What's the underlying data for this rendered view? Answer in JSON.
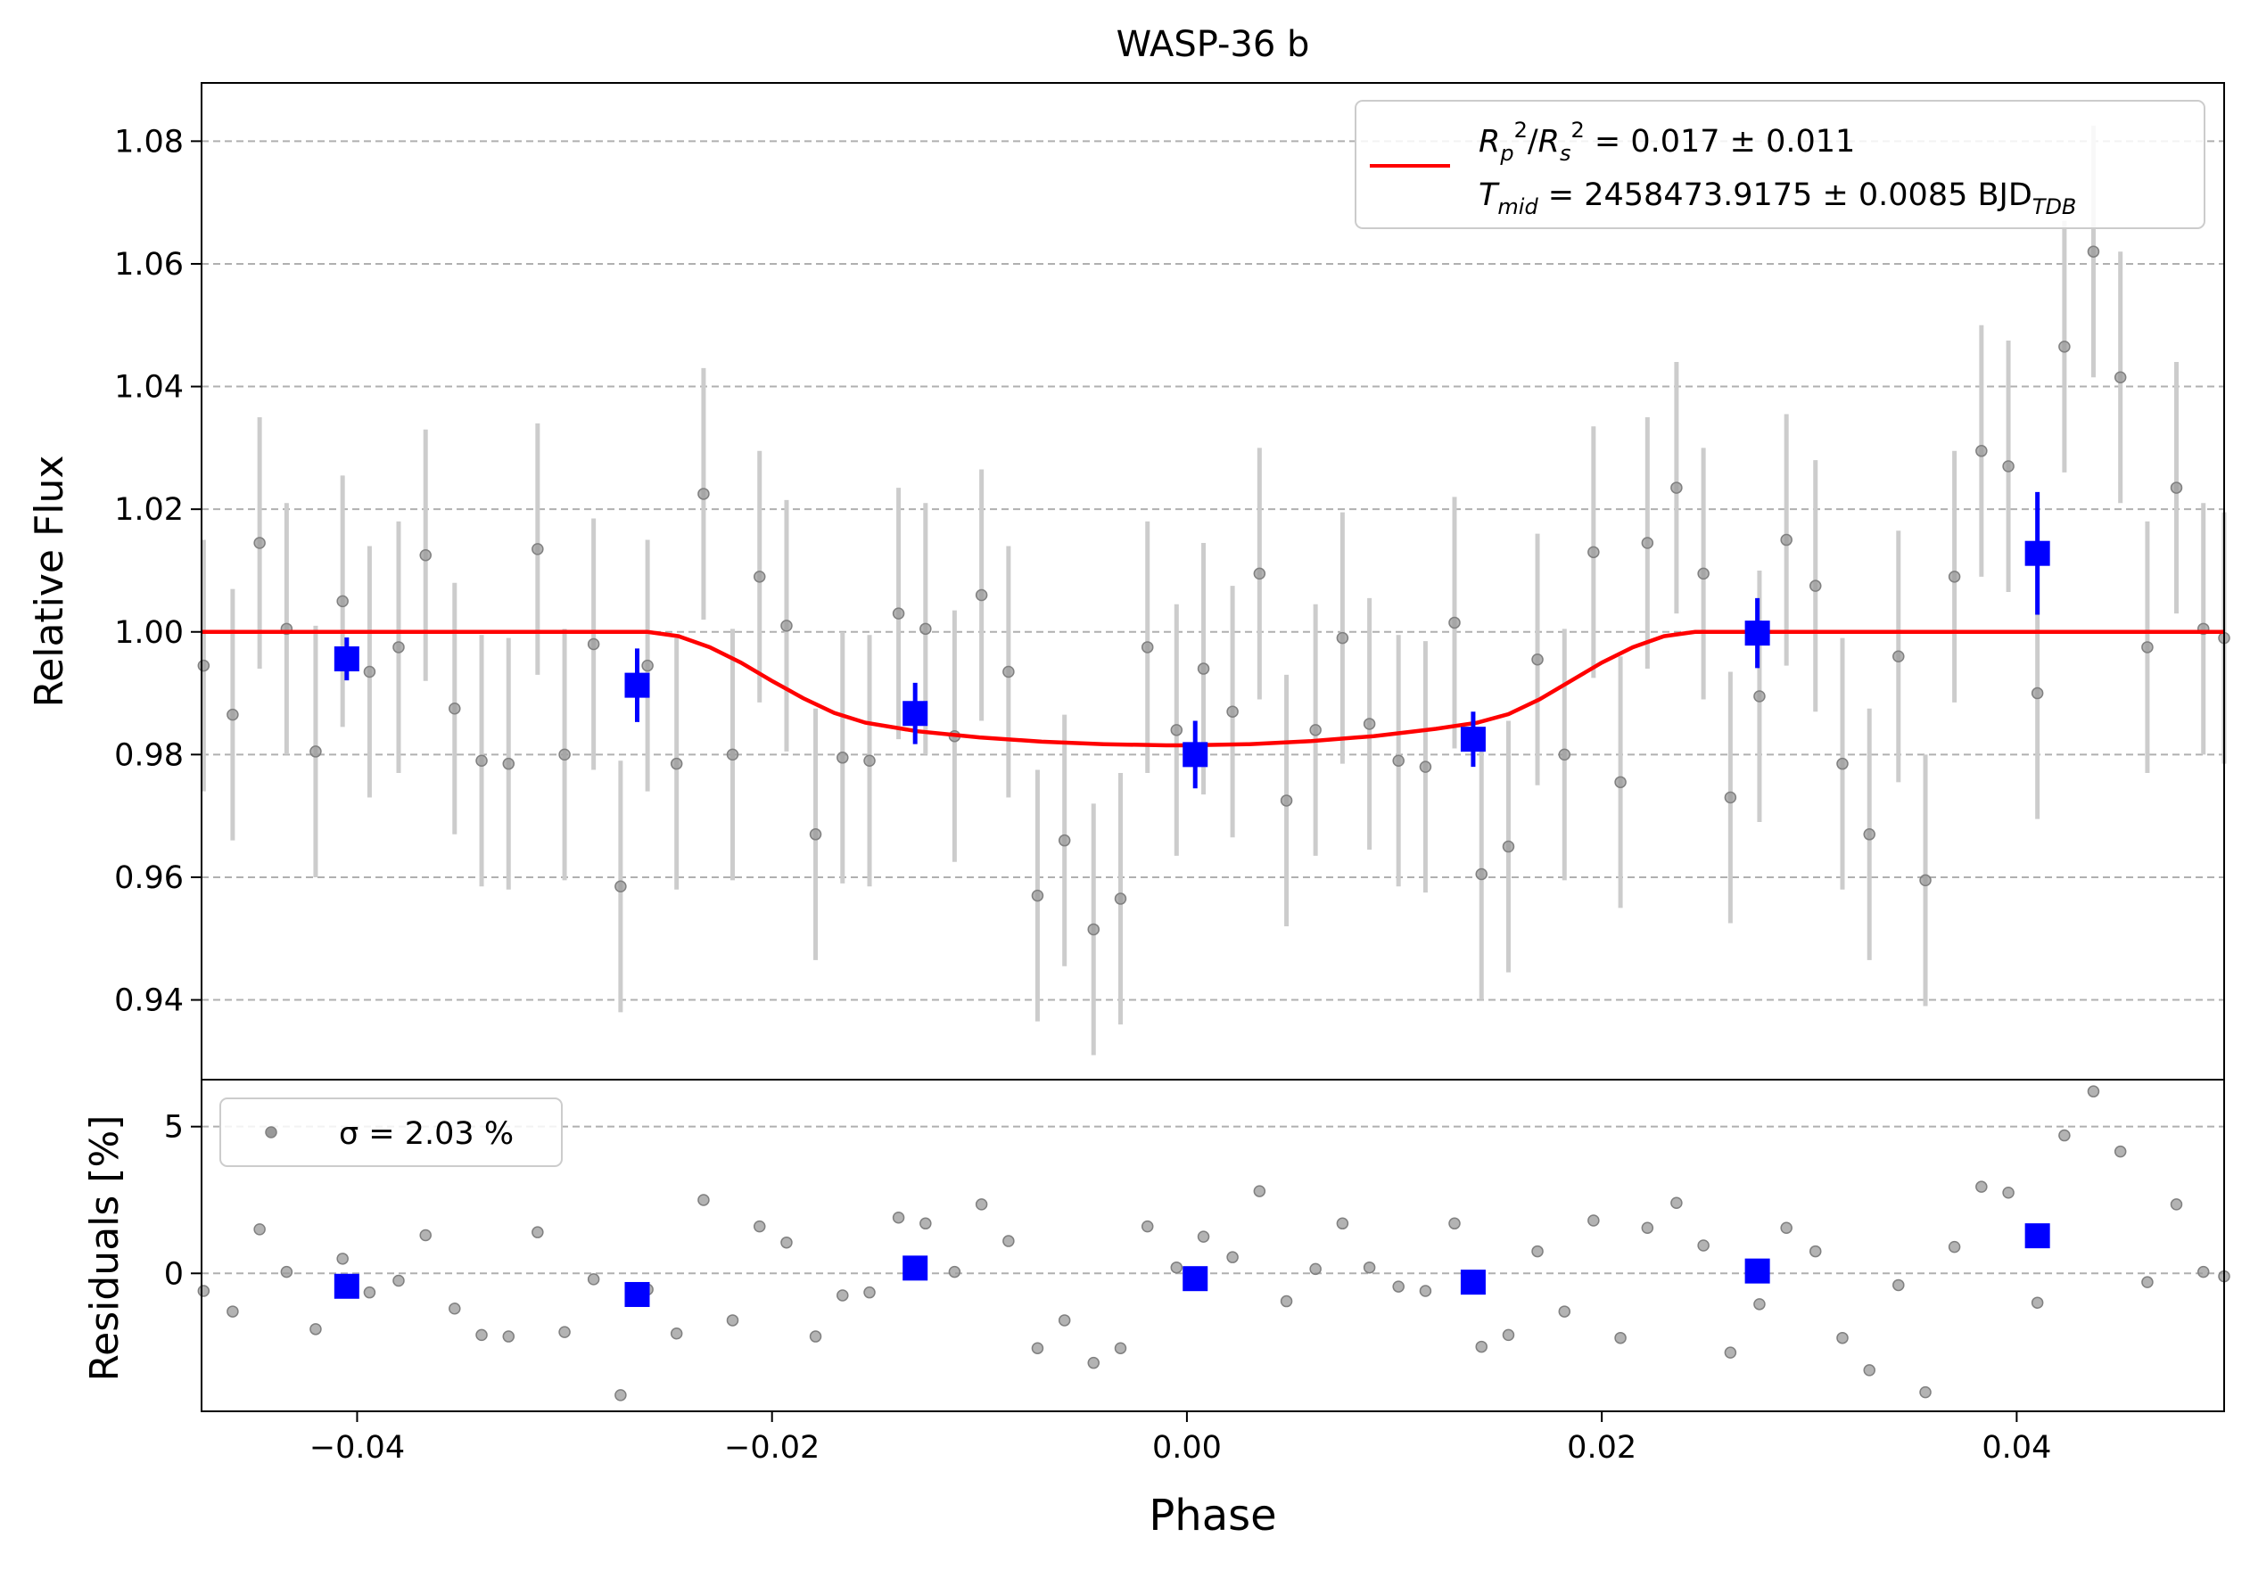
{
  "chart_data": [
    {
      "type": "scatter",
      "title": "WASP-36 b",
      "xlabel": "",
      "ylabel": "Relative Flux",
      "xlim": [
        -0.0475,
        0.05
      ],
      "ylim": [
        0.927,
        1.0895
      ],
      "yticks": [
        "0.94",
        "0.96",
        "0.98",
        "1.00",
        "1.02",
        "1.04",
        "1.06",
        "1.08"
      ],
      "grid": "horizontal dashed",
      "legend": {
        "placement": "top-right",
        "model_label_line1": "R_p^2/R_s^2 = 0.017 ± 0.011",
        "model_label_line2": "T_mid = 2458473.9175 ± 0.0085 BJD_TDB"
      },
      "series": [
        {
          "kind": "raw",
          "color": "#808080",
          "error": 0.0205,
          "x": [
            -0.0474,
            -0.046,
            -0.0447,
            -0.0434,
            -0.042,
            -0.0407,
            -0.0394,
            -0.038,
            -0.0367,
            -0.0353,
            -0.034,
            -0.0327,
            -0.0313,
            -0.03,
            -0.0286,
            -0.0273,
            -0.026,
            -0.0246,
            -0.0233,
            -0.0219,
            -0.0206,
            -0.0193,
            -0.0179,
            -0.0166,
            -0.0153,
            -0.0139,
            -0.0126,
            -0.0112,
            -0.0099,
            -0.0086,
            -0.0072,
            -0.0059,
            -0.0045,
            -0.0032,
            -0.0019,
            -0.0005,
            0.0008,
            0.0022,
            0.0035,
            0.0048,
            0.0062,
            0.0075,
            0.0088,
            0.0102,
            0.0115,
            0.0129,
            0.0142,
            0.0155,
            0.0169,
            0.0182,
            0.0196,
            0.0209,
            0.0222,
            0.0236,
            0.0249,
            0.0262,
            0.0276,
            0.0289,
            0.0303,
            0.0316,
            0.0329,
            0.0343,
            0.0356,
            0.037,
            0.0383,
            0.0396,
            0.041,
            0.0423,
            0.0437,
            0.045,
            0.0463,
            0.0477,
            0.049,
            0.05
          ],
          "y": [
            0.9945,
            0.9865,
            1.0145,
            1.0005,
            0.9805,
            1.005,
            0.9935,
            0.9975,
            1.0125,
            0.9875,
            0.979,
            0.9785,
            1.0135,
            0.98,
            0.998,
            0.9585,
            0.9945,
            0.9785,
            1.0225,
            0.98,
            1.009,
            1.001,
            0.967,
            0.9795,
            0.979,
            1.003,
            1.0005,
            0.983,
            1.006,
            0.9935,
            0.957,
            0.966,
            0.9515,
            0.9565,
            0.9975,
            0.984,
            0.994,
            0.987,
            1.0095,
            0.9725,
            0.984,
            0.999,
            0.985,
            0.979,
            0.978,
            1.0015,
            0.9605,
            0.965,
            0.9955,
            0.98,
            1.013,
            0.9755,
            1.0145,
            1.0235,
            1.0095,
            0.973,
            0.9895,
            1.015,
            1.0075,
            0.9785,
            0.967,
            0.996,
            0.9595,
            1.009,
            1.0295,
            1.027,
            0.99,
            1.0465,
            1.062,
            1.0415,
            0.9975,
            1.0235,
            1.0005,
            0.999
          ]
        },
        {
          "kind": "binned",
          "color": "#0000ff",
          "x": [
            -0.0405,
            -0.0265,
            -0.0131,
            0.0004,
            0.0138,
            0.0275,
            0.041
          ],
          "y": [
            0.9956,
            0.9913,
            0.9867,
            0.98,
            0.9825,
            0.9998,
            1.0128
          ],
          "error": [
            0.0035,
            0.006,
            0.005,
            0.0055,
            0.0045,
            0.0057,
            0.01
          ]
        },
        {
          "kind": "model",
          "color": "#ff0000",
          "x": [
            -0.0475,
            -0.026,
            -0.0245,
            -0.023,
            -0.0215,
            -0.02,
            -0.0185,
            -0.017,
            -0.0155,
            -0.013,
            -0.01,
            -0.007,
            -0.004,
            -0.001,
            0.0,
            0.003,
            0.006,
            0.009,
            0.012,
            0.014,
            0.0155,
            0.017,
            0.0185,
            0.02,
            0.0215,
            0.023,
            0.0245,
            0.026,
            0.05
          ],
          "y": [
            1.0,
            1.0,
            0.9993,
            0.9975,
            0.995,
            0.992,
            0.9892,
            0.9868,
            0.9852,
            0.9838,
            0.9828,
            0.9821,
            0.9817,
            0.9815,
            0.9815,
            0.9817,
            0.9822,
            0.983,
            0.9842,
            0.9852,
            0.9866,
            0.989,
            0.992,
            0.995,
            0.9975,
            0.9993,
            1.0,
            1.0,
            1.0
          ]
        }
      ]
    },
    {
      "type": "scatter",
      "title": "",
      "xlabel": "Phase",
      "ylabel": "Residuals [%]",
      "xlim": [
        -0.0475,
        0.05
      ],
      "ylim": [
        -4.7,
        6.6
      ],
      "xticks": [
        "−0.04",
        "−0.02",
        "0.00",
        "0.02",
        "0.04"
      ],
      "yticks": [
        "0",
        "5"
      ],
      "grid": "horizontal dashed",
      "legend": {
        "placement": "top-left",
        "label": "σ = 2.03 %"
      },
      "series": [
        {
          "kind": "raw",
          "color": "#808080",
          "x": [
            -0.0474,
            -0.046,
            -0.0447,
            -0.0434,
            -0.042,
            -0.0407,
            -0.0394,
            -0.038,
            -0.0367,
            -0.0353,
            -0.034,
            -0.0327,
            -0.0313,
            -0.03,
            -0.0286,
            -0.0273,
            -0.026,
            -0.0246,
            -0.0233,
            -0.0219,
            -0.0206,
            -0.0193,
            -0.0179,
            -0.0166,
            -0.0153,
            -0.0139,
            -0.0126,
            -0.0112,
            -0.0099,
            -0.0086,
            -0.0072,
            -0.0059,
            -0.0045,
            -0.0032,
            -0.0019,
            -0.0005,
            0.0008,
            0.0022,
            0.0035,
            0.0048,
            0.0062,
            0.0075,
            0.0088,
            0.0102,
            0.0115,
            0.0129,
            0.0142,
            0.0155,
            0.0169,
            0.0182,
            0.0196,
            0.0209,
            0.0222,
            0.0236,
            0.0249,
            0.0262,
            0.0276,
            0.0289,
            0.0303,
            0.0316,
            0.0329,
            0.0343,
            0.0356,
            0.037,
            0.0383,
            0.0396,
            0.041,
            0.0423,
            0.0437,
            0.045,
            0.0463,
            0.0477,
            0.049,
            0.05
          ],
          "y": [
            -0.6,
            -1.3,
            1.5,
            0.05,
            -1.9,
            0.5,
            -0.65,
            -0.25,
            1.3,
            -1.2,
            -2.1,
            -2.15,
            1.4,
            -2.0,
            -0.2,
            -4.15,
            -0.55,
            -2.05,
            2.5,
            -1.6,
            1.6,
            1.05,
            -2.15,
            -0.75,
            -0.65,
            1.9,
            1.7,
            0.05,
            2.35,
            1.1,
            -2.55,
            -1.6,
            -3.05,
            -2.55,
            1.6,
            0.2,
            1.25,
            0.55,
            2.8,
            -0.95,
            0.15,
            1.7,
            0.2,
            -0.45,
            -0.6,
            1.7,
            -2.5,
            -2.1,
            0.75,
            -1.3,
            1.8,
            -2.2,
            1.55,
            2.4,
            0.95,
            -2.7,
            -1.05,
            1.55,
            0.75,
            -2.2,
            -3.3,
            -0.4,
            -4.05,
            0.9,
            2.95,
            2.75,
            -1.0,
            4.7,
            6.2,
            4.15,
            -0.3,
            2.35,
            0.05,
            -0.1
          ]
        },
        {
          "kind": "binned",
          "color": "#0000ff",
          "x": [
            -0.0405,
            -0.0265,
            -0.0131,
            0.0004,
            0.0138,
            0.0275,
            0.041
          ],
          "y": [
            -0.44,
            -0.72,
            0.18,
            -0.18,
            -0.3,
            0.08,
            1.28
          ]
        }
      ]
    }
  ]
}
